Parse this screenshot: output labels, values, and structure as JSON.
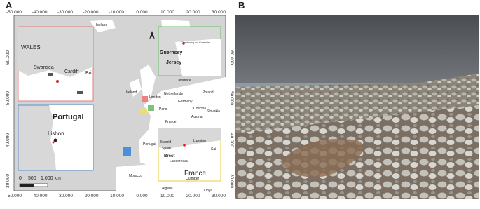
{
  "panel_a": {
    "label": "A",
    "top_ticks": [
      "-50.000",
      "-40.000",
      "-30.000",
      "-20.000",
      "-10.000",
      "0.000",
      "10.000",
      "20.000",
      "30.000"
    ],
    "bottom_ticks": [
      "-50.000",
      "-40.000",
      "-30.000",
      "-20.000",
      "-10.000",
      "0.000",
      "10.000",
      "20.000",
      "30.000"
    ],
    "left_ticks": [
      "60.000",
      "50.000",
      "40.000",
      "30.000"
    ],
    "right_ticks": [
      "60.000",
      "50.000",
      "40.000",
      "30.000"
    ],
    "places": [
      "Iceland",
      "Ireland",
      "London",
      "Netherlands",
      "Denmark",
      "Germany",
      "Poland",
      "Czechia",
      "Slovakia",
      "Paris",
      "France",
      "Austria",
      "Portugal",
      "Madrid",
      "Spain",
      "Morocco",
      "Algeria",
      "Libya"
    ],
    "inset_wales": {
      "title": "WALES",
      "places": [
        "Swansea",
        "Cardiff",
        "Bri"
      ]
    },
    "inset_portugal": {
      "title": "Portugal",
      "places": [
        "Lisbon"
      ]
    },
    "scale_bar": [
      "0",
      "500",
      "1,000 km"
    ],
    "inset_channel": {
      "places": [
        "Cherbourg-en-Cotentin",
        "Guernsey",
        "Jersey"
      ]
    },
    "inset_brittany": {
      "title": "France",
      "places": [
        "Lannion",
        "Brest",
        "Landerneau",
        "Quimper",
        "Sai"
      ]
    }
  },
  "panel_b": {
    "label": "B"
  }
}
